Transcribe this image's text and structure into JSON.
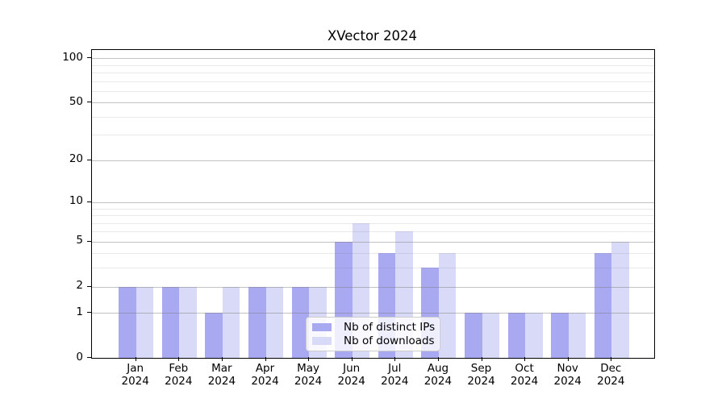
{
  "figure": {
    "background": "#ffffff"
  },
  "chart_data": {
    "type": "bar",
    "title": "XVector 2024",
    "xlabel": "",
    "ylabel": "",
    "categories": [
      "Jan 2024",
      "Feb 2024",
      "Mar 2024",
      "Apr 2024",
      "May 2024",
      "Jun 2024",
      "Jul 2024",
      "Aug 2024",
      "Sep 2024",
      "Oct 2024",
      "Nov 2024",
      "Dec 2024"
    ],
    "series": [
      {
        "name": "Nb of distinct IPs",
        "color": "#a9a9f2",
        "values": [
          2,
          2,
          1,
          2,
          2,
          5,
          4,
          3,
          1,
          1,
          1,
          4
        ]
      },
      {
        "name": "Nb of downloads",
        "color": "#d9d9f8",
        "values": [
          2,
          2,
          2,
          2,
          2,
          7,
          6,
          4,
          1,
          1,
          1,
          5
        ]
      }
    ],
    "y_scale": "log1p",
    "ylim": [
      0,
      114
    ],
    "y_major_ticks": [
      100,
      50,
      20,
      10,
      5,
      2,
      1,
      0
    ],
    "y_minor_gridlines": [
      3,
      4,
      6,
      7,
      8,
      9,
      30,
      40,
      60,
      70,
      80,
      90
    ],
    "grid": true,
    "grid_above_bars": true,
    "legend": {
      "position": "lower-center",
      "entries": [
        "Nb of distinct IPs",
        "Nb of downloads"
      ]
    }
  }
}
